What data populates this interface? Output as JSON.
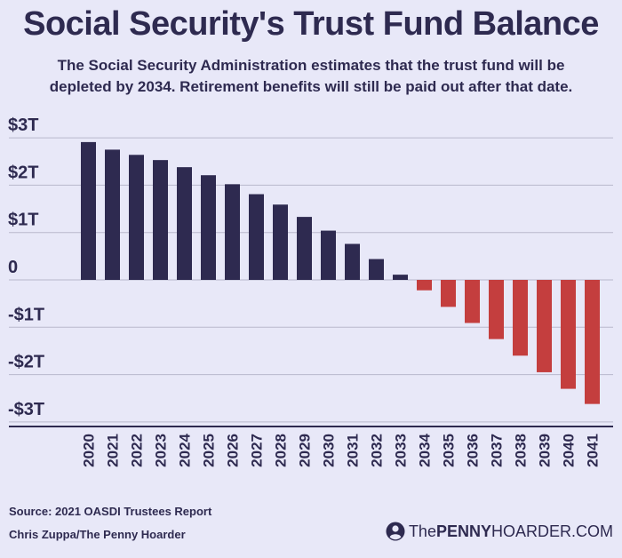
{
  "header": {
    "title": "Social Security's Trust Fund Balance",
    "subtitle_line1": "The Social Security Administration estimates that the trust fund will be",
    "subtitle_line2": "depleted by 2034. Retirement benefits will still be paid out after that date."
  },
  "chart_data": {
    "type": "bar",
    "title": "Social Security's Trust Fund Balance",
    "xlabel": "",
    "ylabel": "",
    "ylim": [
      -3,
      3
    ],
    "yticks": [
      3,
      2,
      1,
      0,
      -1,
      -2,
      -3
    ],
    "ytick_labels": [
      "$3T",
      "$2T",
      "$1T",
      "0",
      "-$1T",
      "-$2T",
      "-$3T"
    ],
    "unit": "trillions of dollars",
    "grid": true,
    "categories": [
      "2020",
      "2021",
      "2022",
      "2023",
      "2024",
      "2025",
      "2026",
      "2027",
      "2028",
      "2029",
      "2030",
      "2031",
      "2032",
      "2033",
      "2034",
      "2035",
      "2036",
      "2037",
      "2038",
      "2039",
      "2040",
      "2041"
    ],
    "values": [
      2.91,
      2.75,
      2.64,
      2.53,
      2.38,
      2.21,
      2.02,
      1.81,
      1.59,
      1.33,
      1.04,
      0.76,
      0.44,
      0.11,
      -0.22,
      -0.57,
      -0.91,
      -1.25,
      -1.6,
      -1.95,
      -2.3,
      -2.62
    ],
    "positive_color": "#2e2a50",
    "negative_color": "#c43e3e"
  },
  "footer": {
    "source": "Source: 2021 OASDI Trustees Report",
    "credit": "Chris Zuppa/The Penny Hoarder",
    "brand_the": "The",
    "brand_penny": "PENNY",
    "brand_hoarder": "HOARDER.COM",
    "brand_icon": "person-pin-icon"
  },
  "colors": {
    "background": "#e8e8f8",
    "text": "#2e2a50",
    "gridline": "#b9b8cc",
    "axis": "#2e2a50"
  }
}
